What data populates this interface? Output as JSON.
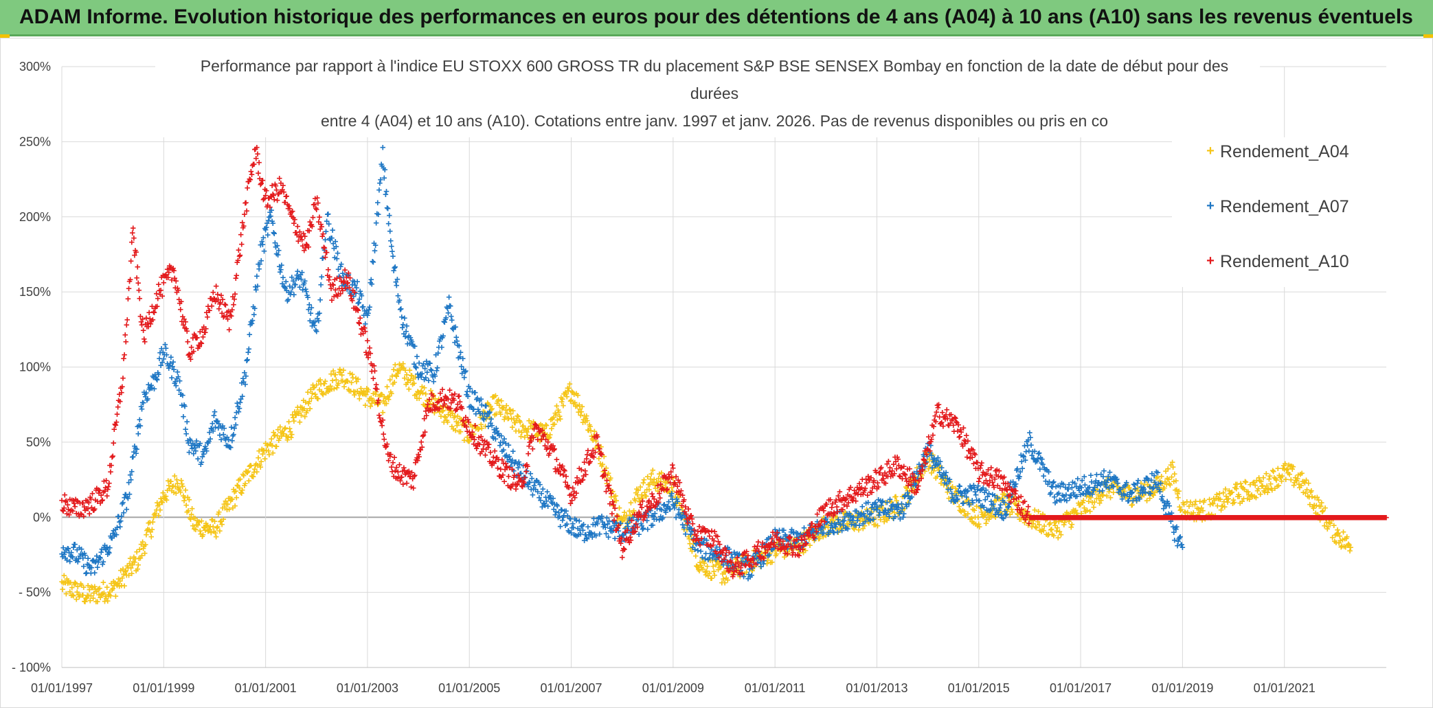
{
  "banner": {
    "title": "ADAM Informe. Evolution historique des performances en euros pour des détentions de 4 ans (A04) à 10 ans (A10) sans les revenus éventuels"
  },
  "chart_data": {
    "type": "scatter",
    "title_lines": [
      "Performance  par rapport à l'indice EU STOXX 600 GROSS TR  du placement S&P BSE SENSEX Bombay en fonction de la date de début pour des",
      "durées",
      "entre 4 (A04) et 10 ans (A10). Cotations entre janv. 1997 et janv. 2026. Pas de revenus disponibles ou pris en co"
    ],
    "x_tick_labels": [
      "01/01/1997",
      "01/01/1999",
      "01/01/2001",
      "01/01/2003",
      "01/01/2005",
      "01/01/2007",
      "01/01/2009",
      "01/01/2011",
      "01/01/2013",
      "01/01/2015",
      "01/01/2017",
      "01/01/2019",
      "01/01/2021"
    ],
    "y_tick_labels": [
      "300%",
      "250%",
      "200%",
      "150%",
      "100%",
      "50%",
      "0%",
      "- 50%",
      "- 100%"
    ],
    "xlim": [
      1997.0,
      2023.0
    ],
    "ylim": [
      -100,
      300
    ],
    "legend_position": "top-right",
    "series": [
      {
        "name": "Rendement_A04",
        "color": "#f5c518",
        "x": [
          1997.0,
          1997.5,
          1998.0,
          1998.5,
          1999.0,
          1999.3,
          1999.6,
          2000.0,
          2000.5,
          2001.0,
          2001.5,
          2002.0,
          2002.5,
          2003.0,
          2003.3,
          2003.6,
          2004.0,
          2004.5,
          2005.0,
          2005.5,
          2006.0,
          2006.5,
          2007.0,
          2007.3,
          2007.6,
          2008.0,
          2008.3,
          2008.6,
          2009.0,
          2009.5,
          2010.0,
          2010.5,
          2011.0,
          2011.5,
          2012.0,
          2012.5,
          2013.0,
          2013.5,
          2014.0,
          2014.5,
          2015.0,
          2015.5,
          2016.0,
          2016.5,
          2017.0,
          2017.5,
          2018.0,
          2018.5,
          2018.8,
          2019.0,
          2019.5,
          2020.0,
          2020.5,
          2021.0,
          2021.3,
          2021.6,
          2022.0,
          2022.3
        ],
        "y": [
          -45,
          -52,
          -48,
          -28,
          15,
          25,
          -5,
          -8,
          20,
          45,
          60,
          85,
          95,
          80,
          75,
          100,
          85,
          70,
          55,
          75,
          60,
          55,
          85,
          65,
          40,
          -5,
          15,
          25,
          20,
          -30,
          -38,
          -30,
          -22,
          -18,
          -5,
          -3,
          0,
          10,
          40,
          15,
          0,
          10,
          0,
          -8,
          5,
          20,
          15,
          20,
          30,
          5,
          5,
          15,
          20,
          30,
          25,
          10,
          -10,
          -20
        ]
      },
      {
        "name": "Rendement_A07",
        "color": "#1f77c4",
        "x": [
          1997.0,
          1997.3,
          1997.6,
          1998.0,
          1998.3,
          1998.6,
          1998.8,
          1999.0,
          1999.3,
          1999.5,
          1999.8,
          2000.0,
          2000.3,
          2000.6,
          2000.9,
          2001.1,
          2001.4,
          2001.7,
          2002.0,
          2002.2,
          2002.5,
          2002.8,
          2003.0,
          2003.3,
          2003.5,
          2003.7,
          2004.0,
          2004.3,
          2004.6,
          2005.0,
          2005.3,
          2005.6,
          2006.0,
          2006.4,
          2006.8,
          2007.2,
          2007.6,
          2008.0,
          2008.5,
          2009.0,
          2009.5,
          2010.0,
          2010.5,
          2011.0,
          2011.5,
          2012.0,
          2012.5,
          2013.0,
          2013.5,
          2014.0,
          2014.5,
          2015.0,
          2015.5,
          2016.0,
          2016.5,
          2017.0,
          2017.5,
          2018.0,
          2018.5,
          2018.8,
          2019.0
        ],
        "y": [
          -20,
          -25,
          -35,
          -15,
          15,
          80,
          90,
          110,
          90,
          50,
          40,
          65,
          50,
          95,
          175,
          200,
          150,
          160,
          120,
          200,
          160,
          150,
          130,
          240,
          170,
          130,
          100,
          95,
          140,
          80,
          70,
          50,
          30,
          15,
          0,
          -10,
          -5,
          -10,
          -2,
          10,
          -20,
          -25,
          -35,
          -15,
          -15,
          -5,
          0,
          5,
          5,
          45,
          15,
          15,
          5,
          50,
          15,
          20,
          25,
          15,
          25,
          -5,
          -20
        ]
      },
      {
        "name": "Rendement_A10",
        "color": "#e31a1c",
        "x": [
          1997.0,
          1997.3,
          1997.6,
          1997.9,
          1998.2,
          1998.4,
          1998.6,
          1998.9,
          1999.2,
          1999.5,
          1999.8,
          2000.0,
          2000.3,
          2000.6,
          2000.8,
          2001.0,
          2001.3,
          2001.5,
          2001.8,
          2002.0,
          2002.3,
          2002.6,
          2002.9,
          2003.1,
          2003.4,
          2003.6,
          2003.9,
          2004.2,
          2004.5,
          2004.8,
          2005.0,
          2005.3,
          2005.7,
          2006.0,
          2006.3,
          2006.6,
          2007.0,
          2007.5,
          2008.0,
          2008.3,
          2008.7,
          2009.0,
          2009.4,
          2009.8,
          2010.2,
          2010.6,
          2011.0,
          2011.5,
          2012.0,
          2012.5,
          2013.0,
          2013.4,
          2013.8,
          2014.2,
          2014.6,
          2015.0,
          2015.4,
          2015.8,
          2016.0,
          2017.0,
          2018.0,
          2019.0,
          2020.0,
          2021.0,
          2022.0,
          2023.0
        ],
        "y": [
          10,
          5,
          10,
          20,
          95,
          190,
          120,
          150,
          165,
          110,
          125,
          150,
          130,
          205,
          245,
          210,
          220,
          200,
          180,
          210,
          150,
          160,
          125,
          100,
          40,
          30,
          25,
          75,
          80,
          75,
          60,
          45,
          30,
          20,
          60,
          45,
          15,
          50,
          -20,
          0,
          15,
          30,
          -10,
          -15,
          -35,
          -25,
          -15,
          -20,
          5,
          15,
          25,
          35,
          20,
          70,
          60,
          30,
          25,
          10,
          0,
          0,
          0,
          0,
          0,
          0,
          0,
          0
        ]
      }
    ]
  }
}
